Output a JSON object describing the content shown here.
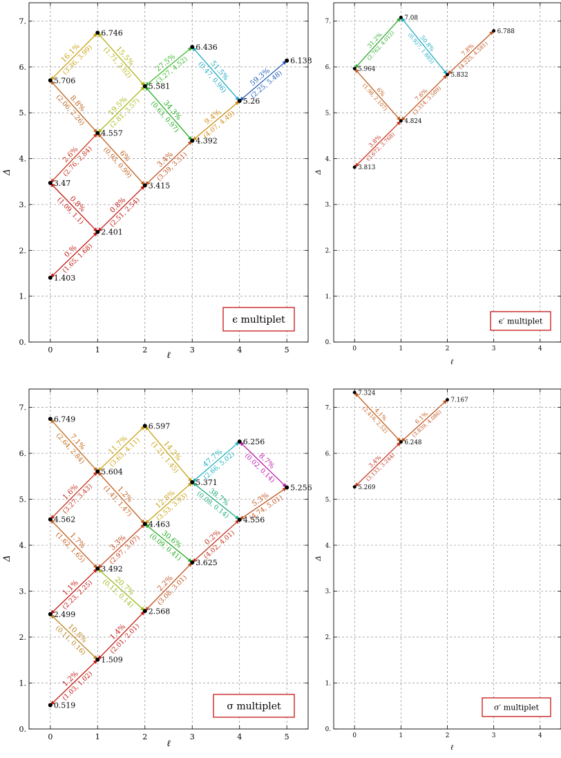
{
  "chart_data": [
    {
      "type": "scatter",
      "legend": "ϵ multiplet",
      "xlabel": "ℓ",
      "ylabel": "Δ",
      "xlim": [
        -0.45,
        5.45
      ],
      "ylim": [
        0,
        7.4
      ],
      "xticks": [
        "0",
        "1",
        "2",
        "3",
        "4",
        "5"
      ],
      "yticks": [
        "0.",
        "1.",
        "2.",
        "3.",
        "4.",
        "5.",
        "6.",
        "7."
      ],
      "points": [
        {
          "x": 0,
          "y": 1.403,
          "label": "1.403"
        },
        {
          "x": 1,
          "y": 2.401,
          "label": "2.401"
        },
        {
          "x": 0,
          "y": 3.47,
          "label": "3.47"
        },
        {
          "x": 2,
          "y": 3.415,
          "label": "3.415"
        },
        {
          "x": 1,
          "y": 4.557,
          "label": "4.557"
        },
        {
          "x": 3,
          "y": 4.392,
          "label": "4.392"
        },
        {
          "x": 0,
          "y": 5.706,
          "label": "5.706"
        },
        {
          "x": 2,
          "y": 5.581,
          "label": "5.581"
        },
        {
          "x": 4,
          "y": 5.26,
          "label": "5.26"
        },
        {
          "x": 1,
          "y": 6.746,
          "label": "6.746"
        },
        {
          "x": 3,
          "y": 6.436,
          "label": "6.436"
        },
        {
          "x": 5,
          "y": 6.138,
          "label": "6.138"
        }
      ],
      "edges": [
        {
          "from": [
            0,
            1.403
          ],
          "to": [
            1,
            2.401
          ],
          "color": "#c0150f",
          "pct": "0.%",
          "range": "(1.65, 1.68)"
        },
        {
          "from": [
            1,
            2.401
          ],
          "to": [
            0,
            3.47
          ],
          "color": "#c0150f",
          "pct": "0.8%",
          "range": "(1.09, 1.1)"
        },
        {
          "from": [
            1,
            2.401
          ],
          "to": [
            2,
            3.415
          ],
          "color": "#c0150f",
          "pct": "0.8%",
          "range": "(2.51, 2.54)"
        },
        {
          "from": [
            0,
            3.47
          ],
          "to": [
            1,
            4.557
          ],
          "color": "#c8301a",
          "pct": "2.6%",
          "range": "(2.76, 2.84)"
        },
        {
          "from": [
            1,
            4.557
          ],
          "to": [
            2,
            3.415
          ],
          "color": "#c05a18",
          "pct": "6%",
          "range": "(0.95, 0.99)"
        },
        {
          "from": [
            2,
            3.415
          ],
          "to": [
            3,
            4.392
          ],
          "color": "#c0501a",
          "pct": "3.4%",
          "range": "(3.39, 3.51)"
        },
        {
          "from": [
            0,
            5.706
          ],
          "to": [
            1,
            4.557
          ],
          "color": "#b8601a",
          "pct": "8.8%",
          "range": "(2.06, 2.26)"
        },
        {
          "from": [
            1,
            4.557
          ],
          "to": [
            2,
            5.581
          ],
          "color": "#a8b818",
          "pct": "19.5%",
          "range": "(2.81, 3.57)"
        },
        {
          "from": [
            3,
            4.392
          ],
          "to": [
            4,
            5.26
          ],
          "color": "#d08a10",
          "pct": "9.4%",
          "range": "(4.07, 4.49)"
        },
        {
          "from": [
            2,
            5.581
          ],
          "to": [
            3,
            4.392
          ],
          "color": "#1ea81e",
          "pct": "34.3%",
          "range": "(0.63, 0.97)"
        },
        {
          "from": [
            0,
            5.706
          ],
          "to": [
            1,
            6.746
          ],
          "color": "#c8a010",
          "pct": "16.1%",
          "range": "(3.36, 3.99)"
        },
        {
          "from": [
            1,
            6.746
          ],
          "to": [
            2,
            5.581
          ],
          "color": "#b0b010",
          "pct": "15.5%",
          "range": "(1.71, 2.02)"
        },
        {
          "from": [
            2,
            5.581
          ],
          "to": [
            3,
            6.436
          ],
          "color": "#3ab82a",
          "pct": "27.5%",
          "range": "(3.27, 4.52)"
        },
        {
          "from": [
            3,
            6.436
          ],
          "to": [
            4,
            5.26
          ],
          "color": "#18a8c0",
          "pct": "51.5%",
          "range": "(0.47, 0.96)"
        },
        {
          "from": [
            4,
            5.26
          ],
          "to": [
            5,
            6.138
          ],
          "color": "#1e5ab8",
          "pct": "59.3%",
          "range": "(2.25, 5.48)"
        }
      ]
    },
    {
      "type": "scatter",
      "legend": "ϵ′ multiplet",
      "xlabel": "ℓ",
      "ylabel": "Δ",
      "xlim": [
        -0.45,
        4.45
      ],
      "ylim": [
        0,
        7.4
      ],
      "xticks": [
        "0",
        "1",
        "2",
        "3",
        "4"
      ],
      "yticks": [
        "0.",
        "1.",
        "2.",
        "3.",
        "4.",
        "5.",
        "6.",
        "7."
      ],
      "points": [
        {
          "x": 0,
          "y": 3.813,
          "label": "3.813"
        },
        {
          "x": 1,
          "y": 4.824,
          "label": "4.824"
        },
        {
          "x": 0,
          "y": 5.964,
          "label": "5.964"
        },
        {
          "x": 2,
          "y": 5.832,
          "label": "5.832"
        },
        {
          "x": 1,
          "y": 7.08,
          "label": "7.08"
        },
        {
          "x": 3,
          "y": 6.788,
          "label": "6.788"
        }
      ],
      "edges": [
        {
          "from": [
            0,
            3.813
          ],
          "to": [
            1,
            4.824
          ],
          "color": "#c8301a",
          "pct": "3.8%",
          "range": "(3.672, 3.768)"
        },
        {
          "from": [
            0,
            5.964
          ],
          "to": [
            1,
            4.824
          ],
          "color": "#c05a18",
          "pct": "6%",
          "range": "(1.98, 2.107)"
        },
        {
          "from": [
            1,
            4.824
          ],
          "to": [
            2,
            5.832
          ],
          "color": "#c0501a",
          "pct": "7.6%",
          "range": "(3.314, 3.589)"
        },
        {
          "from": [
            0,
            5.964
          ],
          "to": [
            1,
            7.08
          ],
          "color": "#2aa82a",
          "pct": "31.2%",
          "range": "(2.762, 4.012)"
        },
        {
          "from": [
            1,
            7.08
          ],
          "to": [
            2,
            5.832
          ],
          "color": "#18a8c0",
          "pct": "50.8%",
          "range": "(0.927, 1.885)"
        },
        {
          "from": [
            2,
            5.832
          ],
          "to": [
            3,
            6.788
          ],
          "color": "#c0501a",
          "pct": "7.8%",
          "range": "(4.225, 4.581)"
        }
      ]
    },
    {
      "type": "scatter",
      "legend": "σ multiplet",
      "xlabel": "ℓ",
      "ylabel": "Δ",
      "xlim": [
        -0.45,
        5.45
      ],
      "ylim": [
        0,
        7.4
      ],
      "xticks": [
        "0",
        "1",
        "2",
        "3",
        "4",
        "5"
      ],
      "yticks": [
        "0.",
        "1.",
        "2.",
        "3.",
        "4.",
        "5.",
        "6.",
        "7."
      ],
      "points": [
        {
          "x": 0,
          "y": 0.519,
          "label": "0.519"
        },
        {
          "x": 1,
          "y": 1.509,
          "label": "1.509"
        },
        {
          "x": 0,
          "y": 2.499,
          "label": "2.499"
        },
        {
          "x": 2,
          "y": 2.568,
          "label": "2.568"
        },
        {
          "x": 1,
          "y": 3.492,
          "label": "3.492"
        },
        {
          "x": 3,
          "y": 3.625,
          "label": "3.625"
        },
        {
          "x": 0,
          "y": 4.562,
          "label": "4.562"
        },
        {
          "x": 2,
          "y": 4.463,
          "label": "4.463"
        },
        {
          "x": 4,
          "y": 4.556,
          "label": "4.556"
        },
        {
          "x": 1,
          "y": 5.604,
          "label": "5.604"
        },
        {
          "x": 3,
          "y": 5.371,
          "label": "5.371"
        },
        {
          "x": 5,
          "y": 5.256,
          "label": "5.256"
        },
        {
          "x": 0,
          "y": 6.749,
          "label": "6.749"
        },
        {
          "x": 2,
          "y": 6.597,
          "label": "6.597"
        },
        {
          "x": 4,
          "y": 6.256,
          "label": "6.256"
        }
      ],
      "edges": [
        {
          "from": [
            0,
            0.519
          ],
          "to": [
            1,
            1.509
          ],
          "color": "#c0150f",
          "pct": "1.2%",
          "range": "(1.03, 1.02)"
        },
        {
          "from": [
            0,
            2.499
          ],
          "to": [
            1,
            1.509
          ],
          "color": "#b8801a",
          "pct": "10.8%",
          "range": "(0.11, 0.16)"
        },
        {
          "from": [
            1,
            1.509
          ],
          "to": [
            2,
            2.568
          ],
          "color": "#c0150f",
          "pct": "1.4%",
          "range": "(2.01, 2.01)"
        },
        {
          "from": [
            0,
            2.499
          ],
          "to": [
            1,
            3.492
          ],
          "color": "#c0150f",
          "pct": "1.1%",
          "range": "(2.23, 2.25)"
        },
        {
          "from": [
            1,
            3.492
          ],
          "to": [
            2,
            2.568
          ],
          "color": "#98b818",
          "pct": "20.7%",
          "range": "(0.11, 0.14)"
        },
        {
          "from": [
            2,
            2.568
          ],
          "to": [
            3,
            3.625
          ],
          "color": "#c0501a",
          "pct": "2.2%",
          "range": "(3.08, 3.01)"
        },
        {
          "from": [
            0,
            4.562
          ],
          "to": [
            1,
            3.492
          ],
          "color": "#c05a18",
          "pct": "1.7%",
          "range": "(1.62, 1.65)"
        },
        {
          "from": [
            1,
            3.492
          ],
          "to": [
            2,
            4.463
          ],
          "color": "#c04018",
          "pct": "3.3%",
          "range": "(2.97, 3.07)"
        },
        {
          "from": [
            2,
            4.463
          ],
          "to": [
            3,
            3.625
          ],
          "color": "#1ea81e",
          "pct": "30.6%",
          "range": "(0.09, 0.41)"
        },
        {
          "from": [
            3,
            3.625
          ],
          "to": [
            4,
            4.556
          ],
          "color": "#c0301a",
          "pct": "0.2%",
          "range": "(4.02, 4.01)"
        },
        {
          "from": [
            0,
            4.562
          ],
          "to": [
            1,
            5.604
          ],
          "color": "#c0301a",
          "pct": "1.6%",
          "range": "(3.27, 3.43)"
        },
        {
          "from": [
            1,
            5.604
          ],
          "to": [
            2,
            4.463
          ],
          "color": "#c05a18",
          "pct": "1.2%",
          "range": "(1.41, 1.47)"
        },
        {
          "from": [
            2,
            4.463
          ],
          "to": [
            3,
            5.371
          ],
          "color": "#c8a010",
          "pct": "12.8%",
          "range": "(3.53, 3.93)"
        },
        {
          "from": [
            3,
            5.371
          ],
          "to": [
            4,
            4.556
          ],
          "color": "#18a878",
          "pct": "38.7%",
          "range": "(0.08, 0.14)"
        },
        {
          "from": [
            4,
            4.556
          ],
          "to": [
            5,
            5.256
          ],
          "color": "#c0501a",
          "pct": "5.3%",
          "range": "(4.74, 5.01)"
        },
        {
          "from": [
            0,
            6.749
          ],
          "to": [
            1,
            5.604
          ],
          "color": "#c06818",
          "pct": "7.1%",
          "range": "(2.64, 2.84)"
        },
        {
          "from": [
            1,
            5.604
          ],
          "to": [
            2,
            6.597
          ],
          "color": "#c8a010",
          "pct": "11.7%",
          "range": "(3.63, 4.11)"
        },
        {
          "from": [
            2,
            6.597
          ],
          "to": [
            3,
            5.371
          ],
          "color": "#c8a010",
          "pct": "14.2%",
          "range": "(1.21, 1.45)"
        },
        {
          "from": [
            3,
            5.371
          ],
          "to": [
            4,
            6.256
          ],
          "color": "#18b0c0",
          "pct": "47.7%",
          "range": "(2.66, 5.02)"
        },
        {
          "from": [
            4,
            6.256
          ],
          "to": [
            5,
            5.256
          ],
          "color": "#b818a8",
          "pct": "8.7%",
          "range": "(0.02, 0.14)"
        }
      ]
    },
    {
      "type": "scatter",
      "legend": "σ′ multiplet",
      "xlabel": "ℓ",
      "ylabel": "Δ",
      "xlim": [
        -0.45,
        4.45
      ],
      "ylim": [
        0,
        7.4
      ],
      "xticks": [
        "0",
        "1",
        "2",
        "3",
        "4"
      ],
      "yticks": [
        "0.",
        "1.",
        "2.",
        "3.",
        "4.",
        "5.",
        "6.",
        "7."
      ],
      "points": [
        {
          "x": 0,
          "y": 5.269,
          "label": "5.269"
        },
        {
          "x": 1,
          "y": 6.248,
          "label": "6.248"
        },
        {
          "x": 0,
          "y": 7.324,
          "label": "7.324"
        },
        {
          "x": 2,
          "y": 7.167,
          "label": "7.167"
        }
      ],
      "edges": [
        {
          "from": [
            0,
            5.269
          ],
          "to": [
            1,
            6.248
          ],
          "color": "#c0301a",
          "pct": "3.4%",
          "range": "(3.133, 3.244)"
        },
        {
          "from": [
            0,
            7.324
          ],
          "to": [
            1,
            6.248
          ],
          "color": "#c05a18",
          "pct": "4.1%",
          "range": "(2.416, 2.52)"
        },
        {
          "from": [
            1,
            6.248
          ],
          "to": [
            2,
            7.167
          ],
          "color": "#c0501a",
          "pct": "6.1%",
          "range": "(3.839, 4.086)"
        }
      ]
    }
  ]
}
